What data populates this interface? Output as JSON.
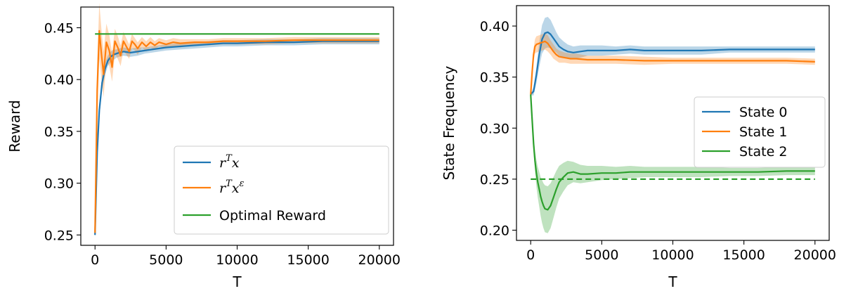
{
  "chart_data": [
    {
      "type": "line",
      "xlabel": "T",
      "ylabel": "Reward",
      "xlim": [
        -1000,
        21000
      ],
      "ylim": [
        0.24,
        0.47
      ],
      "xticks": [
        "0",
        "5000",
        "10000",
        "15000",
        "20000"
      ],
      "xtick_values": [
        0,
        5000,
        10000,
        15000,
        20000
      ],
      "yticks": [
        "0.25",
        "0.30",
        "0.35",
        "0.40",
        "0.45"
      ],
      "ytick_values": [
        0.25,
        0.3,
        0.35,
        0.4,
        0.45
      ],
      "grid": false,
      "legend": {
        "position": "lower-right",
        "entries": [
          {
            "label_base": "r",
            "label_sup": "T",
            "label_after": "x",
            "label_sup2": ""
          },
          {
            "label_base": "r",
            "label_sup": "T",
            "label_after": "x",
            "label_sup2": "ε"
          },
          {
            "label_base": "Optimal Reward",
            "label_sup": "",
            "label_after": "",
            "label_sup2": ""
          }
        ]
      },
      "series": [
        {
          "color": "#1f77b4",
          "style": "solid",
          "x": [
            0,
            150,
            300,
            500,
            700,
            900,
            1100,
            1300,
            1500,
            1700,
            2000,
            2500,
            3000,
            3500,
            4000,
            5000,
            6000,
            7000,
            8000,
            9000,
            10000,
            12000,
            14000,
            16000,
            18000,
            20000
          ],
          "y": [
            0.25,
            0.33,
            0.37,
            0.397,
            0.41,
            0.418,
            0.422,
            0.424,
            0.425,
            0.426,
            0.427,
            0.426,
            0.427,
            0.428,
            0.429,
            0.431,
            0.432,
            0.433,
            0.434,
            0.435,
            0.435,
            0.436,
            0.436,
            0.437,
            0.437,
            0.437
          ],
          "band": [
            0.003,
            0.006,
            0.007,
            0.007,
            0.006,
            0.005,
            0.005,
            0.005,
            0.004,
            0.004,
            0.004,
            0.004,
            0.004,
            0.003,
            0.003,
            0.003,
            0.003,
            0.003,
            0.003,
            0.003,
            0.003,
            0.003,
            0.003,
            0.003,
            0.003,
            0.003
          ]
        },
        {
          "color": "#ff7f0e",
          "style": "solid",
          "x": [
            0,
            150,
            300,
            450,
            600,
            800,
            1000,
            1200,
            1400,
            1600,
            1800,
            2000,
            2200,
            2400,
            2600,
            2800,
            3000,
            3300,
            3600,
            3900,
            4200,
            4500,
            5000,
            5500,
            6000,
            7000,
            8000,
            9000,
            10000,
            12000,
            14000,
            16000,
            18000,
            20000
          ],
          "y": [
            0.252,
            0.39,
            0.447,
            0.425,
            0.405,
            0.436,
            0.428,
            0.412,
            0.437,
            0.431,
            0.423,
            0.437,
            0.432,
            0.427,
            0.437,
            0.434,
            0.43,
            0.436,
            0.432,
            0.436,
            0.433,
            0.436,
            0.434,
            0.436,
            0.435,
            0.436,
            0.436,
            0.437,
            0.437,
            0.437,
            0.438,
            0.438,
            0.438,
            0.438
          ],
          "band": [
            0.004,
            0.025,
            0.027,
            0.024,
            0.022,
            0.018,
            0.015,
            0.014,
            0.012,
            0.011,
            0.01,
            0.009,
            0.008,
            0.007,
            0.007,
            0.006,
            0.006,
            0.005,
            0.005,
            0.005,
            0.004,
            0.004,
            0.004,
            0.004,
            0.004,
            0.003,
            0.003,
            0.003,
            0.003,
            0.003,
            0.003,
            0.003,
            0.003,
            0.003
          ]
        },
        {
          "color": "#2ca02c",
          "style": "solid",
          "x": [
            0,
            20000
          ],
          "y": [
            0.444,
            0.444
          ]
        }
      ]
    },
    {
      "type": "line",
      "xlabel": "T",
      "ylabel": "State Frequency",
      "xlim": [
        -1000,
        21000
      ],
      "ylim": [
        0.19,
        0.42
      ],
      "xticks": [
        "0",
        "5000",
        "10000",
        "15000",
        "20000"
      ],
      "xtick_values": [
        0,
        5000,
        10000,
        15000,
        20000
      ],
      "yticks": [
        "0.20",
        "0.25",
        "0.30",
        "0.35",
        "0.40"
      ],
      "ytick_values": [
        0.2,
        0.25,
        0.3,
        0.35,
        0.4
      ],
      "grid": false,
      "legend": {
        "position": "center-right",
        "entries": [
          "State 0",
          "State 1",
          "State 2"
        ]
      },
      "series": [
        {
          "name": "State 0",
          "color": "#1f77b4",
          "style": "solid",
          "x": [
            0,
            200,
            400,
            600,
            800,
            1000,
            1200,
            1400,
            1600,
            1800,
            2000,
            2300,
            2600,
            3000,
            3500,
            4000,
            5000,
            6000,
            7000,
            8000,
            10000,
            12000,
            14000,
            16000,
            18000,
            20000
          ],
          "y": [
            0.333,
            0.336,
            0.352,
            0.372,
            0.387,
            0.393,
            0.394,
            0.392,
            0.388,
            0.384,
            0.38,
            0.377,
            0.375,
            0.374,
            0.375,
            0.376,
            0.376,
            0.376,
            0.377,
            0.376,
            0.376,
            0.376,
            0.377,
            0.377,
            0.377,
            0.377
          ],
          "band": [
            0.001,
            0.004,
            0.008,
            0.012,
            0.014,
            0.015,
            0.015,
            0.014,
            0.012,
            0.01,
            0.009,
            0.008,
            0.007,
            0.006,
            0.006,
            0.005,
            0.005,
            0.004,
            0.004,
            0.004,
            0.004,
            0.004,
            0.003,
            0.003,
            0.003,
            0.003
          ]
        },
        {
          "name": "State 1",
          "color": "#ff7f0e",
          "style": "solid",
          "x": [
            0,
            100,
            200,
            300,
            400,
            600,
            800,
            1000,
            1200,
            1400,
            1600,
            1800,
            2000,
            2400,
            2800,
            3200,
            4000,
            5000,
            6000,
            8000,
            10000,
            12000,
            14000,
            16000,
            18000,
            20000
          ],
          "y": [
            0.333,
            0.355,
            0.372,
            0.38,
            0.382,
            0.383,
            0.384,
            0.385,
            0.383,
            0.379,
            0.375,
            0.372,
            0.37,
            0.369,
            0.368,
            0.368,
            0.367,
            0.367,
            0.367,
            0.366,
            0.366,
            0.366,
            0.366,
            0.366,
            0.366,
            0.365
          ],
          "band": [
            0.001,
            0.004,
            0.006,
            0.007,
            0.008,
            0.008,
            0.008,
            0.008,
            0.008,
            0.007,
            0.007,
            0.006,
            0.006,
            0.005,
            0.005,
            0.005,
            0.004,
            0.004,
            0.004,
            0.004,
            0.003,
            0.003,
            0.003,
            0.003,
            0.003,
            0.003
          ]
        },
        {
          "name": "State 2",
          "color": "#2ca02c",
          "style": "solid",
          "x": [
            0,
            100,
            200,
            300,
            400,
            500,
            600,
            700,
            800,
            900,
            1000,
            1200,
            1400,
            1600,
            1800,
            2000,
            2300,
            2600,
            3000,
            3500,
            4000,
            5000,
            6000,
            7000,
            8000,
            10000,
            12000,
            14000,
            16000,
            18000,
            20000
          ],
          "y": [
            0.333,
            0.308,
            0.285,
            0.268,
            0.256,
            0.247,
            0.24,
            0.233,
            0.228,
            0.224,
            0.221,
            0.22,
            0.224,
            0.232,
            0.24,
            0.247,
            0.252,
            0.256,
            0.257,
            0.255,
            0.255,
            0.256,
            0.256,
            0.257,
            0.257,
            0.257,
            0.257,
            0.257,
            0.257,
            0.258,
            0.258
          ],
          "band": [
            0.001,
            0.004,
            0.007,
            0.01,
            0.013,
            0.015,
            0.017,
            0.019,
            0.021,
            0.022,
            0.023,
            0.023,
            0.022,
            0.02,
            0.018,
            0.016,
            0.014,
            0.012,
            0.01,
            0.009,
            0.008,
            0.007,
            0.006,
            0.006,
            0.005,
            0.005,
            0.005,
            0.004,
            0.004,
            0.004,
            0.004
          ]
        },
        {
          "color": "#2ca02c",
          "style": "dashed",
          "x": [
            0,
            20000
          ],
          "y": [
            0.25,
            0.25
          ]
        }
      ]
    }
  ]
}
